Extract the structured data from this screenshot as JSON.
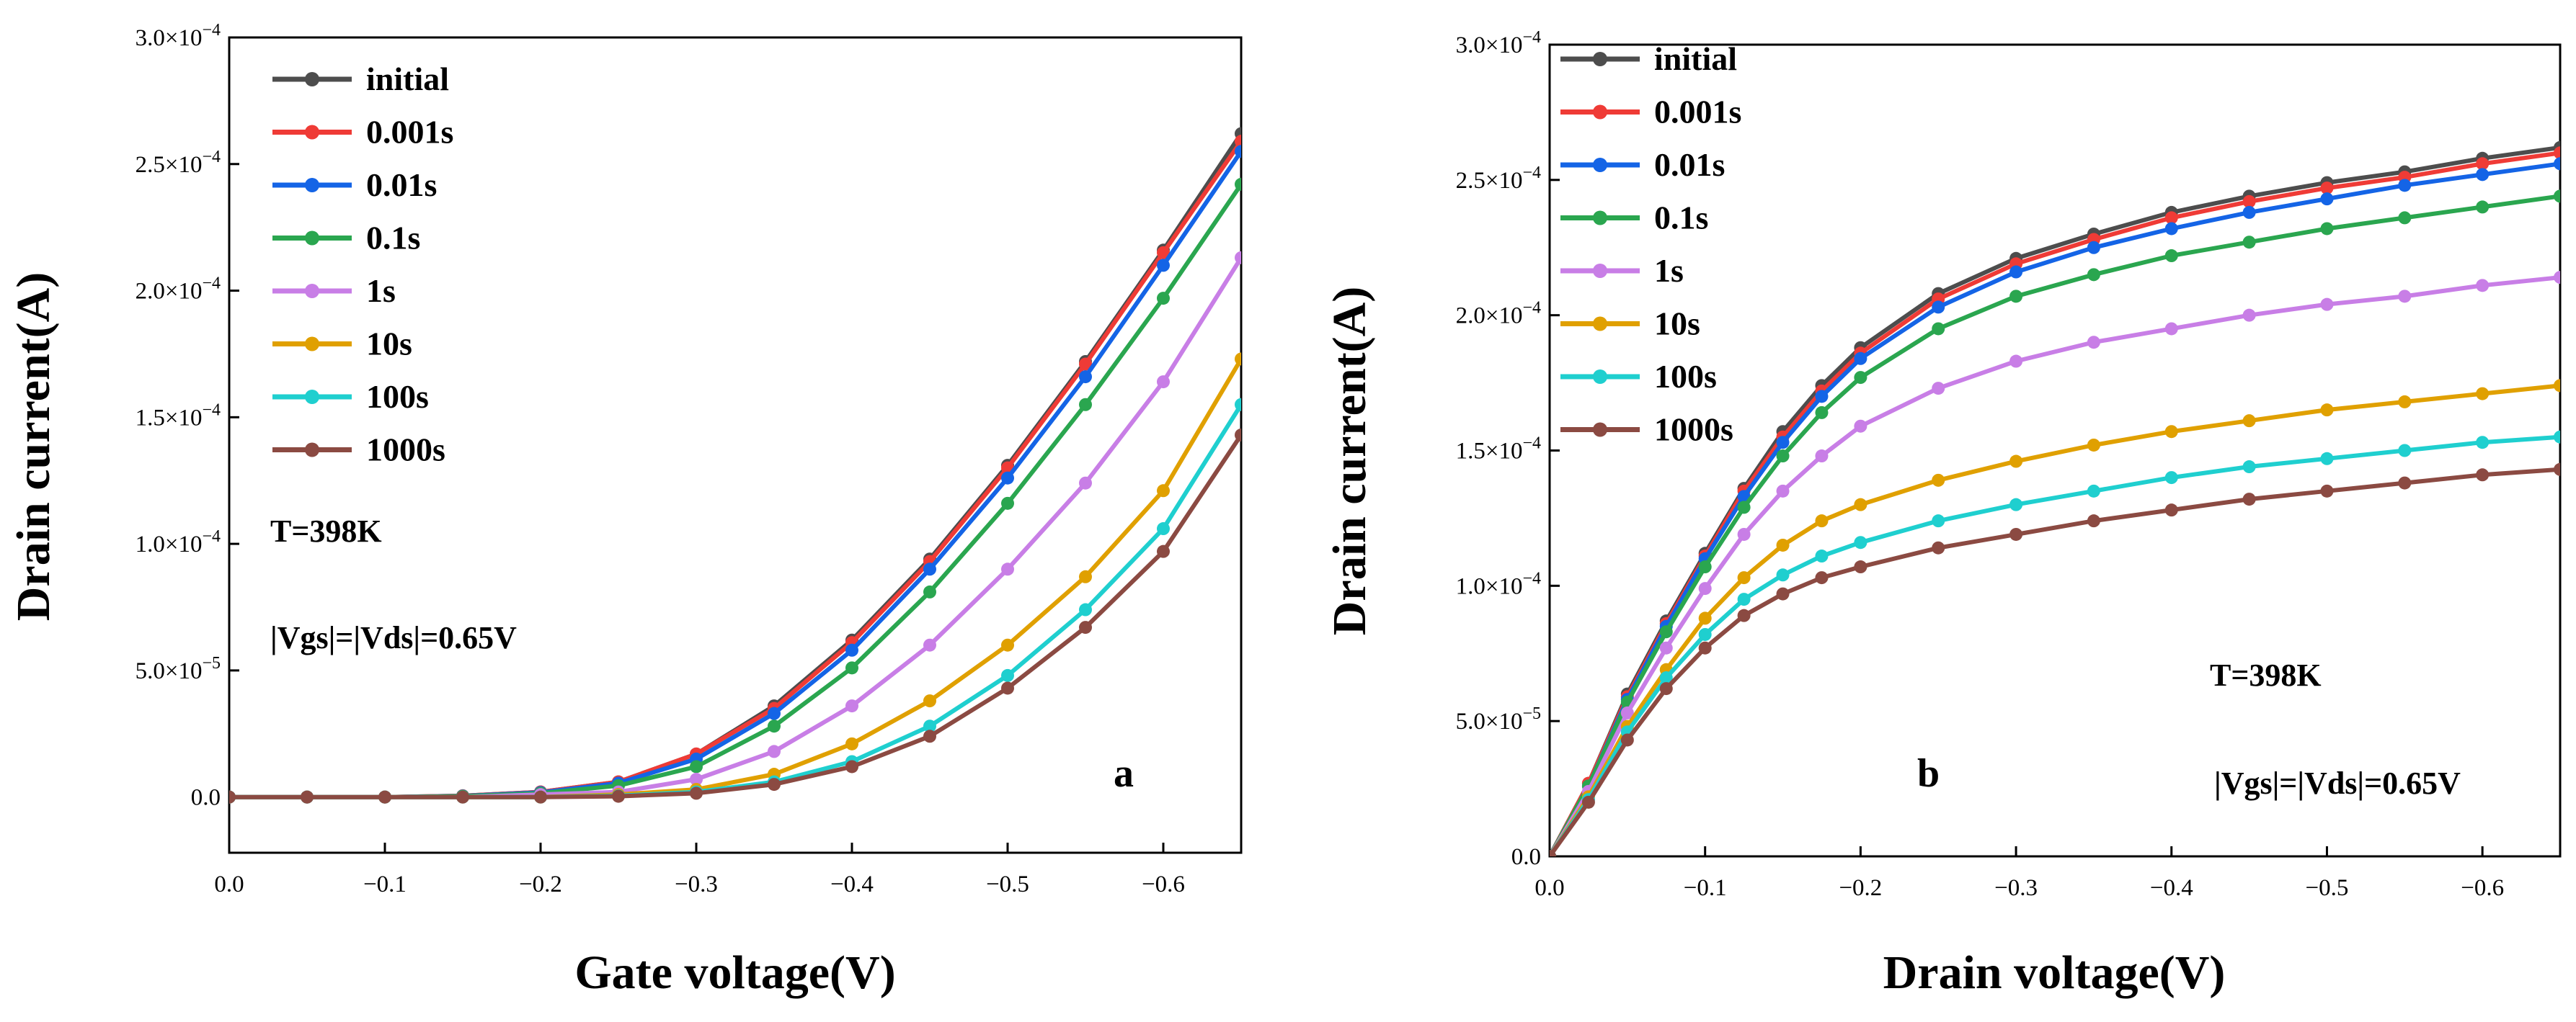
{
  "chart_data": [
    {
      "type": "line",
      "panel_label": "a",
      "xlabel": "Gate voltage(V)",
      "ylabel": "Drain current(A)",
      "xlim": [
        0.0,
        -0.65
      ],
      "ylim": [
        -2.2e-05,
        0.0003
      ],
      "xticks": [
        0.0,
        -0.1,
        -0.2,
        -0.3,
        -0.4,
        -0.5,
        -0.6
      ],
      "xtick_labels": [
        "0.0",
        "−0.1",
        "−0.2",
        "−0.3",
        "−0.4",
        "−0.5",
        "−0.6"
      ],
      "yticks": [
        0.0,
        5e-05,
        0.0001,
        0.00015,
        0.0002,
        0.00025,
        0.0003
      ],
      "ytick_labels": [
        {
          "mant": "0.0",
          "exp": ""
        },
        {
          "mant": "5.0×10",
          "exp": "−5"
        },
        {
          "mant": "1.0×10",
          "exp": "−4"
        },
        {
          "mant": "1.5×10",
          "exp": "−4"
        },
        {
          "mant": "2.0×10",
          "exp": "−4"
        },
        {
          "mant": "2.5×10",
          "exp": "−4"
        },
        {
          "mant": "3.0×10",
          "exp": "−4"
        }
      ],
      "legend_position": "top-left",
      "annotations": [
        "T=398K",
        "|Vgs|=|Vds|=0.65V"
      ],
      "series": [
        {
          "name": "initial",
          "color": "#4d4d4d",
          "x": [
            0,
            -0.05,
            -0.1,
            -0.15,
            -0.2,
            -0.25,
            -0.3,
            -0.35,
            -0.4,
            -0.45,
            -0.5,
            -0.55,
            -0.6,
            -0.65
          ],
          "values": [
            0,
            0,
            0,
            5e-07,
            2e-06,
            6e-06,
            1.7e-05,
            3.6e-05,
            6.2e-05,
            9.4e-05,
            0.000131,
            0.000172,
            0.000216,
            0.000262
          ]
        },
        {
          "name": "0.001s",
          "color": "#ef3b36",
          "x": [
            0,
            -0.05,
            -0.1,
            -0.15,
            -0.2,
            -0.25,
            -0.3,
            -0.35,
            -0.4,
            -0.45,
            -0.5,
            -0.55,
            -0.6,
            -0.65
          ],
          "values": [
            0,
            0,
            0,
            5e-07,
            2e-06,
            6e-06,
            1.7e-05,
            3.5e-05,
            6.1e-05,
            9.3e-05,
            0.00013,
            0.000171,
            0.000215,
            0.000259
          ]
        },
        {
          "name": "0.01s",
          "color": "#1464e6",
          "x": [
            0,
            -0.05,
            -0.1,
            -0.15,
            -0.2,
            -0.25,
            -0.3,
            -0.35,
            -0.4,
            -0.45,
            -0.5,
            -0.55,
            -0.6,
            -0.65
          ],
          "values": [
            0,
            0,
            0,
            4e-07,
            1.8e-06,
            5.5e-06,
            1.5e-05,
            3.3e-05,
            5.8e-05,
            9e-05,
            0.000126,
            0.000166,
            0.00021,
            0.000255
          ]
        },
        {
          "name": "0.1s",
          "color": "#2aa64f",
          "x": [
            0,
            -0.05,
            -0.1,
            -0.15,
            -0.2,
            -0.25,
            -0.3,
            -0.35,
            -0.4,
            -0.45,
            -0.5,
            -0.55,
            -0.6,
            -0.65
          ],
          "values": [
            0,
            0,
            0,
            3e-07,
            1.5e-06,
            4.5e-06,
            1.2e-05,
            2.8e-05,
            5.1e-05,
            8.1e-05,
            0.000116,
            0.000155,
            0.000197,
            0.000242
          ]
        },
        {
          "name": "1s",
          "color": "#c87ee6",
          "x": [
            0,
            -0.05,
            -0.1,
            -0.15,
            -0.2,
            -0.25,
            -0.3,
            -0.35,
            -0.4,
            -0.45,
            -0.5,
            -0.55,
            -0.6,
            -0.65
          ],
          "values": [
            0,
            0,
            0,
            0,
            1e-06,
            2e-06,
            7e-06,
            1.8e-05,
            3.6e-05,
            6e-05,
            9e-05,
            0.000124,
            0.000164,
            0.000213
          ]
        },
        {
          "name": "10s",
          "color": "#e0a000",
          "x": [
            0,
            -0.05,
            -0.1,
            -0.15,
            -0.2,
            -0.25,
            -0.3,
            -0.35,
            -0.4,
            -0.45,
            -0.5,
            -0.55,
            -0.6,
            -0.65
          ],
          "values": [
            0,
            0,
            0,
            0,
            0,
            1e-06,
            3e-06,
            9e-06,
            2.1e-05,
            3.8e-05,
            6e-05,
            8.7e-05,
            0.000121,
            0.000173
          ]
        },
        {
          "name": "100s",
          "color": "#1fcfcf",
          "x": [
            0,
            -0.05,
            -0.1,
            -0.15,
            -0.2,
            -0.25,
            -0.3,
            -0.35,
            -0.4,
            -0.45,
            -0.5,
            -0.55,
            -0.6,
            -0.65
          ],
          "values": [
            0,
            0,
            0,
            0,
            0,
            5e-07,
            2e-06,
            6e-06,
            1.4e-05,
            2.8e-05,
            4.8e-05,
            7.4e-05,
            0.000106,
            0.000155
          ]
        },
        {
          "name": "1000s",
          "color": "#8b4a42",
          "x": [
            0,
            -0.05,
            -0.1,
            -0.15,
            -0.2,
            -0.25,
            -0.3,
            -0.35,
            -0.4,
            -0.45,
            -0.5,
            -0.55,
            -0.6,
            -0.65
          ],
          "values": [
            0,
            0,
            0,
            0,
            0,
            3e-07,
            1.5e-06,
            5e-06,
            1.2e-05,
            2.4e-05,
            4.3e-05,
            6.7e-05,
            9.7e-05,
            0.000143
          ]
        }
      ]
    },
    {
      "type": "line",
      "panel_label": "b",
      "xlabel": "Drain voltage(V)",
      "ylabel": "Drain current(A)",
      "xlim": [
        0.0,
        -0.65
      ],
      "ylim": [
        0.0,
        0.0003
      ],
      "xticks": [
        0.0,
        -0.1,
        -0.2,
        -0.3,
        -0.4,
        -0.5,
        -0.6
      ],
      "xtick_labels": [
        "0.0",
        "−0.1",
        "−0.2",
        "−0.3",
        "−0.4",
        "−0.5",
        "−0.6"
      ],
      "yticks": [
        0.0,
        5e-05,
        0.0001,
        0.00015,
        0.0002,
        0.00025,
        0.0003
      ],
      "ytick_labels": [
        {
          "mant": "0.0",
          "exp": ""
        },
        {
          "mant": "5.0×10",
          "exp": "−5"
        },
        {
          "mant": "1.0×10",
          "exp": "−4"
        },
        {
          "mant": "1.5×10",
          "exp": "−4"
        },
        {
          "mant": "2.0×10",
          "exp": "−4"
        },
        {
          "mant": "2.5×10",
          "exp": "−4"
        },
        {
          "mant": "3.0×10",
          "exp": "−4"
        }
      ],
      "legend_position": "top-left",
      "annotations": [
        "T=398K",
        "|Vgs|=|Vds|=0.65V"
      ],
      "series": [
        {
          "name": "initial",
          "color": "#4d4d4d",
          "x": [
            0,
            -0.025,
            -0.05,
            -0.075,
            -0.1,
            -0.125,
            -0.15,
            -0.175,
            -0.2,
            -0.25,
            -0.3,
            -0.35,
            -0.4,
            -0.45,
            -0.5,
            -0.55,
            -0.6,
            -0.65
          ],
          "values": [
            0,
            2.7e-05,
            6e-05,
            8.7e-05,
            0.000112,
            0.000136,
            0.000157,
            0.000174,
            0.000188,
            0.000208,
            0.000221,
            0.00023,
            0.000238,
            0.000244,
            0.000249,
            0.000253,
            0.000258,
            0.000262
          ]
        },
        {
          "name": "0.001s",
          "color": "#ef3b36",
          "x": [
            0,
            -0.025,
            -0.05,
            -0.075,
            -0.1,
            -0.125,
            -0.15,
            -0.175,
            -0.2,
            -0.25,
            -0.3,
            -0.35,
            -0.4,
            -0.45,
            -0.5,
            -0.55,
            -0.6,
            -0.65
          ],
          "values": [
            0,
            2.7e-05,
            5.9e-05,
            8.6e-05,
            0.000111,
            0.000135,
            0.000155,
            0.000172,
            0.000186,
            0.000206,
            0.000219,
            0.000228,
            0.000236,
            0.000242,
            0.000247,
            0.000251,
            0.000256,
            0.00026
          ]
        },
        {
          "name": "0.01s",
          "color": "#1464e6",
          "x": [
            0,
            -0.025,
            -0.05,
            -0.075,
            -0.1,
            -0.125,
            -0.15,
            -0.175,
            -0.2,
            -0.25,
            -0.3,
            -0.35,
            -0.4,
            -0.45,
            -0.5,
            -0.55,
            -0.6,
            -0.65
          ],
          "values": [
            0,
            2.6e-05,
            5.8e-05,
            8.5e-05,
            0.00011,
            0.000133,
            0.000153,
            0.00017,
            0.000184,
            0.000203,
            0.000216,
            0.000225,
            0.000232,
            0.000238,
            0.000243,
            0.000248,
            0.000252,
            0.000256
          ]
        },
        {
          "name": "0.1s",
          "color": "#2aa64f",
          "x": [
            0,
            -0.025,
            -0.05,
            -0.075,
            -0.1,
            -0.125,
            -0.15,
            -0.175,
            -0.2,
            -0.25,
            -0.3,
            -0.35,
            -0.4,
            -0.45,
            -0.5,
            -0.55,
            -0.6,
            -0.65
          ],
          "values": [
            0,
            2.6e-05,
            5.7e-05,
            8.3e-05,
            0.000107,
            0.000129,
            0.000148,
            0.000164,
            0.000177,
            0.000195,
            0.000207,
            0.000215,
            0.000222,
            0.000227,
            0.000232,
            0.000236,
            0.00024,
            0.000244
          ]
        },
        {
          "name": "1s",
          "color": "#c87ee6",
          "x": [
            0,
            -0.025,
            -0.05,
            -0.075,
            -0.1,
            -0.125,
            -0.15,
            -0.175,
            -0.2,
            -0.25,
            -0.3,
            -0.35,
            -0.4,
            -0.45,
            -0.5,
            -0.55,
            -0.6,
            -0.65
          ],
          "values": [
            0,
            2.4e-05,
            5.3e-05,
            7.7e-05,
            9.9e-05,
            0.000119,
            0.000135,
            0.000148,
            0.000159,
            0.000173,
            0.000183,
            0.00019,
            0.000195,
            0.0002,
            0.000204,
            0.000207,
            0.000211,
            0.000214
          ]
        },
        {
          "name": "10s",
          "color": "#e0a000",
          "x": [
            0,
            -0.025,
            -0.05,
            -0.075,
            -0.1,
            -0.125,
            -0.15,
            -0.175,
            -0.2,
            -0.25,
            -0.3,
            -0.35,
            -0.4,
            -0.45,
            -0.5,
            -0.55,
            -0.6,
            -0.65
          ],
          "values": [
            0,
            2.2e-05,
            4.8e-05,
            6.9e-05,
            8.8e-05,
            0.000103,
            0.000115,
            0.000124,
            0.00013,
            0.000139,
            0.000146,
            0.000152,
            0.000157,
            0.000161,
            0.000165,
            0.000168,
            0.000171,
            0.000174
          ]
        },
        {
          "name": "100s",
          "color": "#1fcfcf",
          "x": [
            0,
            -0.025,
            -0.05,
            -0.075,
            -0.1,
            -0.125,
            -0.15,
            -0.175,
            -0.2,
            -0.25,
            -0.3,
            -0.35,
            -0.4,
            -0.45,
            -0.5,
            -0.55,
            -0.6,
            -0.65
          ],
          "values": [
            0,
            2.1e-05,
            4.6e-05,
            6.6e-05,
            8.2e-05,
            9.5e-05,
            0.000104,
            0.000111,
            0.000116,
            0.000124,
            0.00013,
            0.000135,
            0.00014,
            0.000144,
            0.000147,
            0.00015,
            0.000153,
            0.000155
          ]
        },
        {
          "name": "1000s",
          "color": "#8b4a42",
          "x": [
            0,
            -0.025,
            -0.05,
            -0.075,
            -0.1,
            -0.125,
            -0.15,
            -0.175,
            -0.2,
            -0.25,
            -0.3,
            -0.35,
            -0.4,
            -0.45,
            -0.5,
            -0.55,
            -0.6,
            -0.65
          ],
          "values": [
            0,
            2e-05,
            4.3e-05,
            6.2e-05,
            7.7e-05,
            8.9e-05,
            9.7e-05,
            0.000103,
            0.000107,
            0.000114,
            0.000119,
            0.000124,
            0.000128,
            0.000132,
            0.000135,
            0.000138,
            0.000141,
            0.000143
          ]
        }
      ]
    }
  ]
}
